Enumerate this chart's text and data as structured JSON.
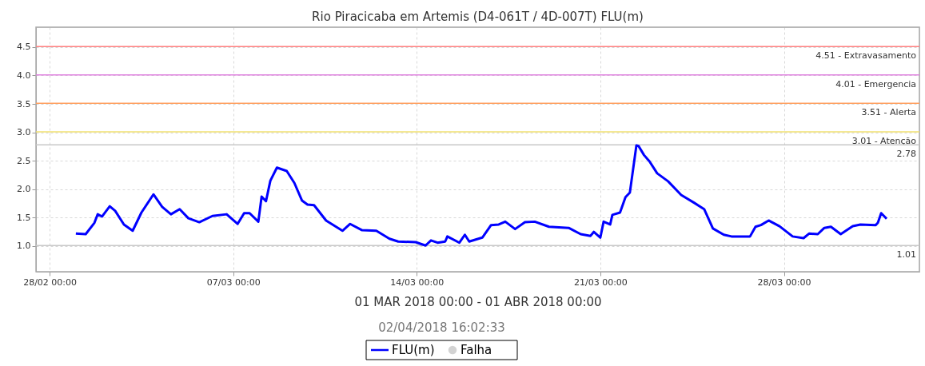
{
  "chart_data": {
    "type": "line",
    "title": "Rio Piracicaba em Artemis (D4-061T / 4D-007T) FLU(m)",
    "xlabel": "01 MAR 2018 00:00 - 01 ABR 2018 00:00",
    "annotations": [
      "02/04/2018 16:02:33"
    ],
    "x": [
      "2018-03-01T00:00",
      "2018-03-01T09:00",
      "2018-03-01T17:00",
      "2018-03-01T20:00",
      "2018-03-02T00:00",
      "2018-03-02T07:00",
      "2018-03-02T12:00",
      "2018-03-02T20:00",
      "2018-03-03T04:00",
      "2018-03-03T12:00",
      "2018-03-03T23:00",
      "2018-03-04T07:00",
      "2018-03-04T15:00",
      "2018-03-04T23:00",
      "2018-03-05T07:00",
      "2018-03-05T17:00",
      "2018-03-06T05:00",
      "2018-03-06T18:00",
      "2018-03-07T04:00",
      "2018-03-07T10:00",
      "2018-03-07T15:00",
      "2018-03-07T23:00",
      "2018-03-08T02:00",
      "2018-03-08T06:00",
      "2018-03-08T10:00",
      "2018-03-08T16:00",
      "2018-03-09T01:00",
      "2018-03-09T08:00",
      "2018-03-09T15:00",
      "2018-03-09T20:00",
      "2018-03-10T02:00",
      "2018-03-10T13:00",
      "2018-03-11T04:00",
      "2018-03-11T11:00",
      "2018-03-11T22:00",
      "2018-03-12T11:00",
      "2018-03-12T23:00",
      "2018-03-13T07:00",
      "2018-03-13T23:00",
      "2018-03-14T08:00",
      "2018-03-14T13:00",
      "2018-03-14T19:00",
      "2018-03-15T02:00",
      "2018-03-15T04:00",
      "2018-03-15T15:00",
      "2018-03-15T20:00",
      "2018-03-16T00:00",
      "2018-03-16T12:00",
      "2018-03-16T20:00",
      "2018-03-17T03:00",
      "2018-03-17T09:00",
      "2018-03-17T18:00",
      "2018-03-18T03:00",
      "2018-03-18T12:00",
      "2018-03-19T01:00",
      "2018-03-19T19:00",
      "2018-03-20T06:00",
      "2018-03-20T15:00",
      "2018-03-20T18:00",
      "2018-03-21T00:00",
      "2018-03-21T03:00",
      "2018-03-21T09:00",
      "2018-03-21T11:00",
      "2018-03-21T18:00",
      "2018-03-21T23:00",
      "2018-03-22T03:00",
      "2018-03-22T09:00",
      "2018-03-22T11:00",
      "2018-03-22T16:00",
      "2018-03-22T21:00",
      "2018-03-23T04:00",
      "2018-03-23T14:00",
      "2018-03-24T02:00",
      "2018-03-24T14:00",
      "2018-03-24T23:00",
      "2018-03-25T07:00",
      "2018-03-25T17:00",
      "2018-03-26T00:00",
      "2018-03-26T17:00",
      "2018-03-26T22:00",
      "2018-03-27T03:00",
      "2018-03-27T10:00",
      "2018-03-27T20:00",
      "2018-03-28T08:00",
      "2018-03-28T18:00",
      "2018-03-28T23:00",
      "2018-03-29T07:00",
      "2018-03-29T13:00",
      "2018-03-29T19:00",
      "2018-03-30T04:00",
      "2018-03-30T15:00",
      "2018-03-30T22:00",
      "2018-03-31T12:00",
      "2018-03-31T14:00",
      "2018-03-31T17:00",
      "2018-03-31T22:00"
    ],
    "series": [
      {
        "name": "FLU(m)",
        "color": "#0000ff",
        "values": [
          1.22,
          1.21,
          1.41,
          1.56,
          1.52,
          1.7,
          1.62,
          1.38,
          1.27,
          1.59,
          1.91,
          1.69,
          1.56,
          1.65,
          1.49,
          1.42,
          1.53,
          1.56,
          1.39,
          1.58,
          1.58,
          1.43,
          1.87,
          1.79,
          2.15,
          2.38,
          2.32,
          2.11,
          1.8,
          1.73,
          1.72,
          1.45,
          1.27,
          1.39,
          1.28,
          1.27,
          1.13,
          1.08,
          1.07,
          1.01,
          1.1,
          1.06,
          1.08,
          1.17,
          1.06,
          1.2,
          1.08,
          1.15,
          1.37,
          1.38,
          1.43,
          1.3,
          1.42,
          1.43,
          1.34,
          1.32,
          1.21,
          1.18,
          1.25,
          1.15,
          1.43,
          1.38,
          1.55,
          1.59,
          1.86,
          1.94,
          2.77,
          2.76,
          2.6,
          2.49,
          2.28,
          2.14,
          1.9,
          1.76,
          1.65,
          1.31,
          1.2,
          1.17,
          1.17,
          1.34,
          1.37,
          1.45,
          1.35,
          1.17,
          1.14,
          1.22,
          1.21,
          1.32,
          1.34,
          1.21,
          1.35,
          1.38,
          1.37,
          1.41,
          1.58,
          1.48
        ]
      },
      {
        "name": "Falha",
        "color": "#c0c0c0",
        "type": "scatter",
        "marker": "circle",
        "values": [
          null,
          null,
          null,
          null,
          null,
          null,
          null,
          null,
          null,
          null,
          null,
          null,
          null,
          null,
          null,
          null,
          null,
          null,
          null,
          null,
          null,
          null,
          null,
          null,
          null,
          null,
          null,
          null,
          null,
          null,
          null,
          null,
          null,
          null,
          null,
          null,
          null,
          null,
          null,
          null,
          null,
          null,
          null,
          null,
          null,
          null,
          null,
          null,
          null,
          null,
          null,
          null,
          null,
          null,
          null,
          null,
          null,
          null,
          null,
          null,
          null,
          null,
          null,
          null,
          null,
          null,
          null,
          null,
          null,
          null,
          null,
          null,
          null,
          null,
          null,
          null,
          null,
          null,
          null,
          null,
          null,
          null,
          null,
          null,
          null,
          null,
          null,
          null,
          null,
          null,
          null,
          null,
          null,
          null,
          null,
          null
        ]
      }
    ],
    "xlim": [
      "2018-02-27T11:30",
      "2018-04-02T04:00"
    ],
    "xticks": [
      {
        "value": "2018-02-28T00:00",
        "label": "28/02 00:00"
      },
      {
        "value": "2018-03-07T00:00",
        "label": "07/03 00:00"
      },
      {
        "value": "2018-03-14T00:00",
        "label": "14/03 00:00"
      },
      {
        "value": "2018-03-21T00:00",
        "label": "21/03 00:00"
      },
      {
        "value": "2018-03-28T00:00",
        "label": "28/03 00:00"
      }
    ],
    "ylim": [
      0.55,
      4.85
    ],
    "yticks": [
      {
        "value": 1,
        "label": "1.0"
      },
      {
        "value": 1.5,
        "label": "1.5"
      },
      {
        "value": 2,
        "label": "2.0"
      },
      {
        "value": 2.5,
        "label": "2.5"
      },
      {
        "value": 3,
        "label": "3.0"
      },
      {
        "value": 3.5,
        "label": "3.5"
      },
      {
        "value": 4,
        "label": "4.0"
      },
      {
        "value": 4.5,
        "label": "4.5"
      }
    ],
    "ref_lines": [
      {
        "axis": "y",
        "value": 4.51,
        "label": "4.51 - Extravasamento",
        "color": "#ff8080"
      },
      {
        "axis": "y",
        "value": 4.01,
        "label": "4.01 - Emergencia",
        "color": "#e080e0"
      },
      {
        "axis": "y",
        "value": 3.51,
        "label": "3.51 - Alerta",
        "color": "#ffa060"
      },
      {
        "axis": "y",
        "value": 3.01,
        "label": "3.01 - Atenção",
        "color": "#f0e070"
      },
      {
        "axis": "y",
        "value": 2.78,
        "label": "2.78",
        "color": "#c8c8c8"
      },
      {
        "axis": "y",
        "value": 1.01,
        "label": "1.01",
        "color": "#c8c8c8"
      }
    ],
    "grid": true,
    "legend": "bottom",
    "line_style": "solid",
    "marker": "none"
  }
}
